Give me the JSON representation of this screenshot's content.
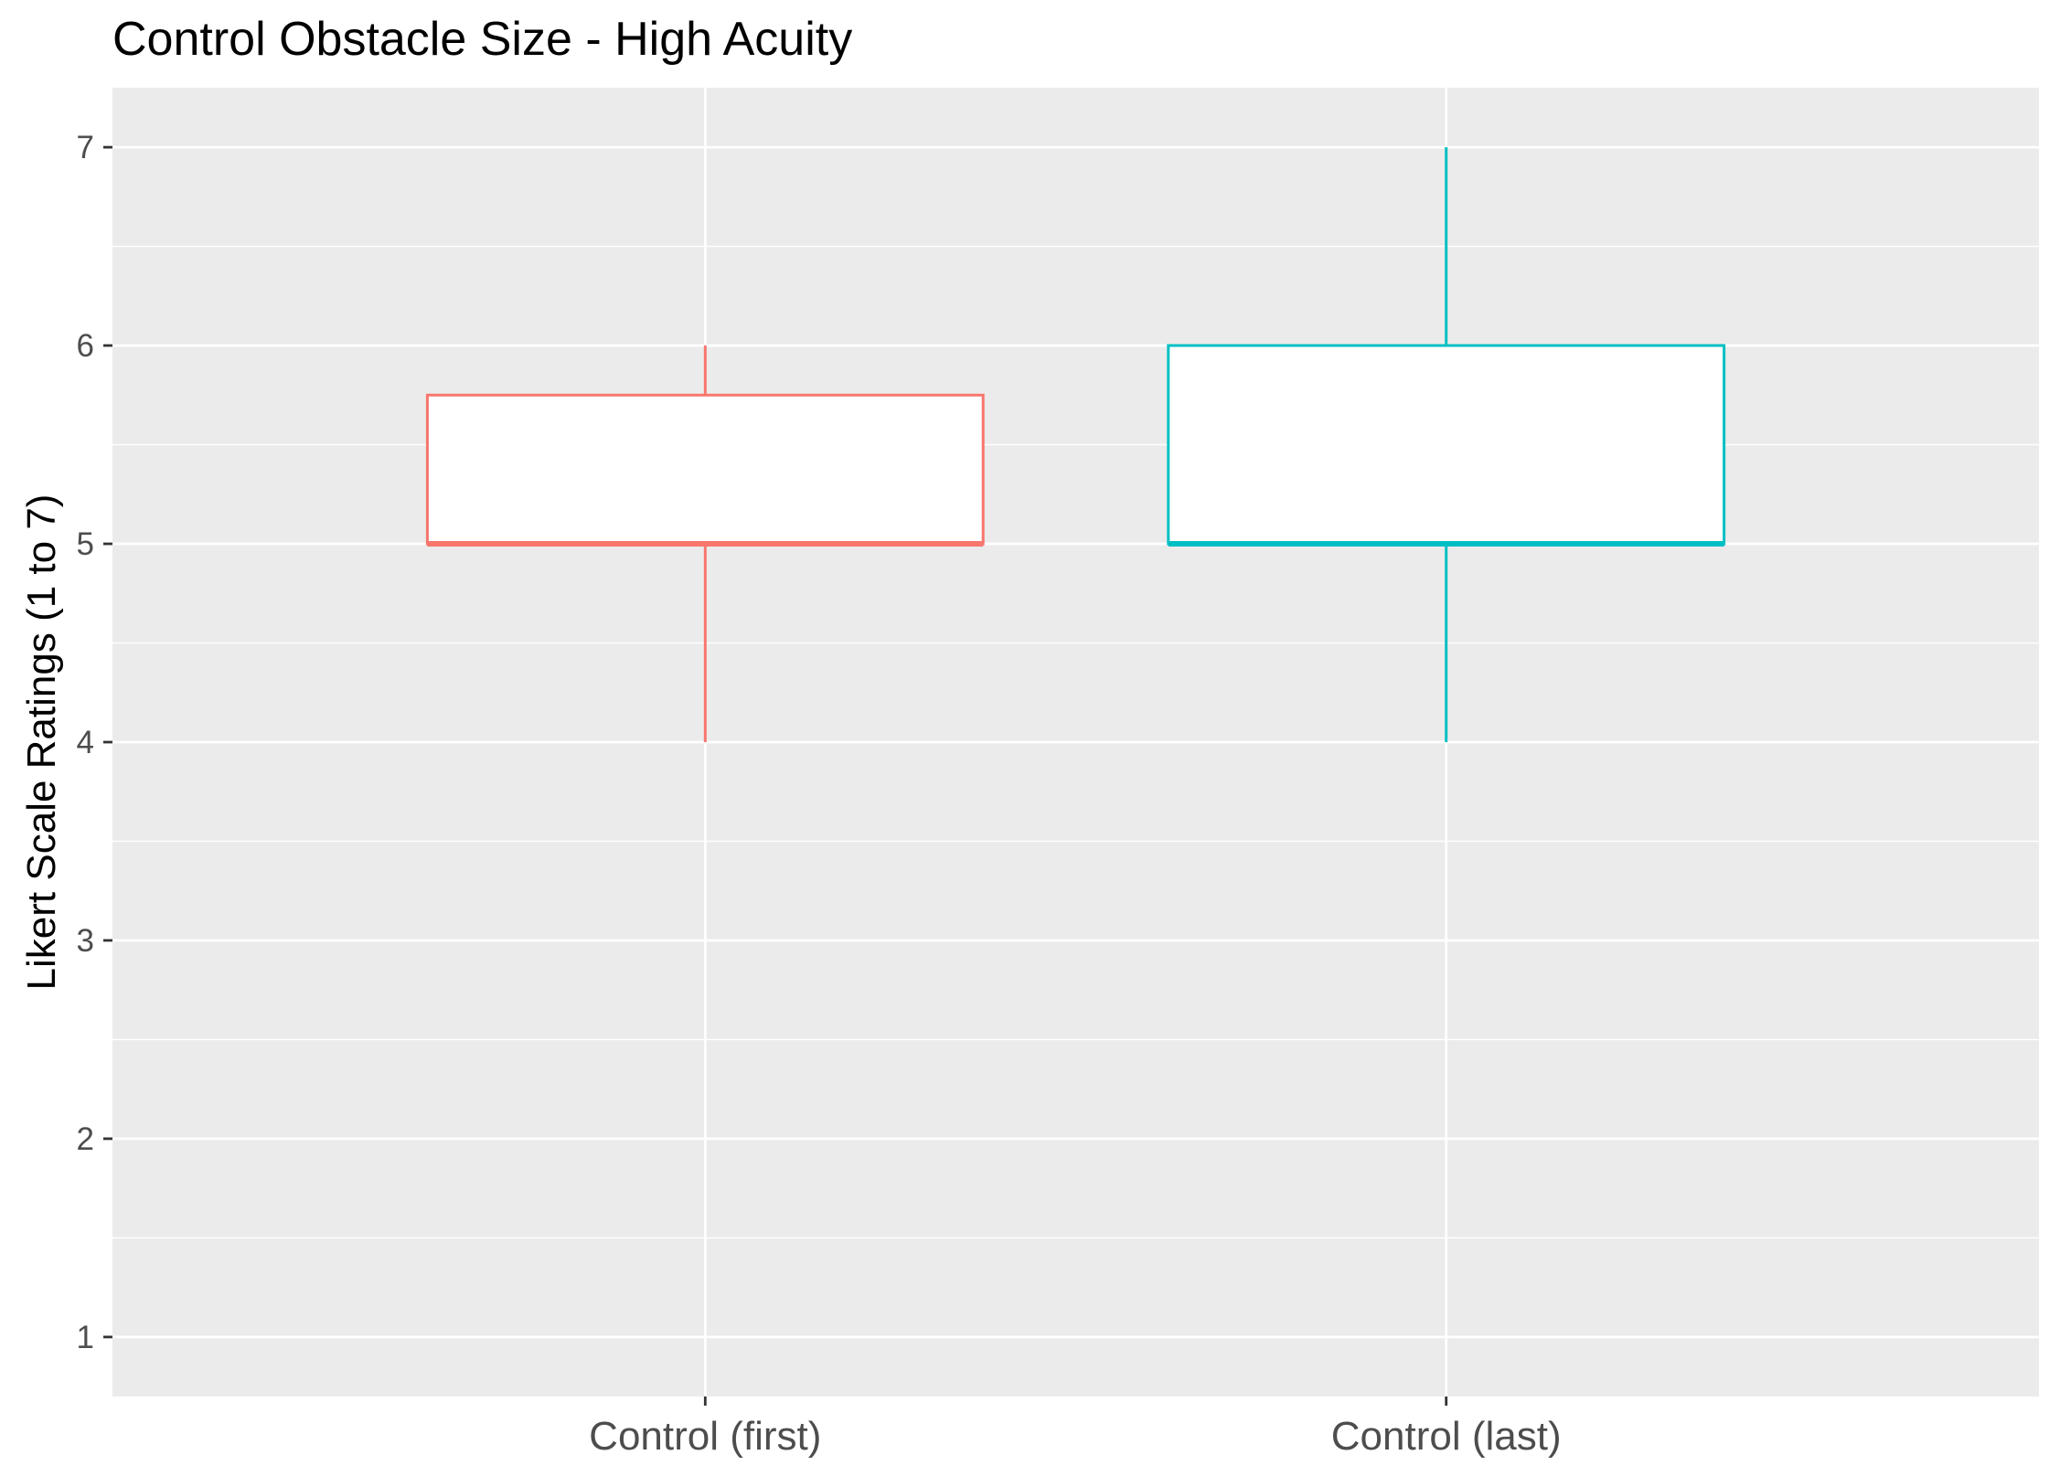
{
  "chart_data": {
    "type": "box",
    "title": "Control Obstacle Size  - High Acuity",
    "xlabel": "",
    "ylabel": "Likert Scale Ratings (1 to 7)",
    "ylim": [
      0.7,
      7.3
    ],
    "yticks": [
      1,
      2,
      3,
      4,
      5,
      6,
      7
    ],
    "grid": true,
    "legend": "none",
    "categories": [
      "Control (first)",
      "Control (last)"
    ],
    "boxes": [
      {
        "category": "Control (first)",
        "min": 4,
        "q1": 5,
        "median": 5,
        "q3": 5.75,
        "max": 6,
        "color": "#F8766D"
      },
      {
        "category": "Control (last)",
        "min": 4,
        "q1": 5,
        "median": 5,
        "q3": 6,
        "max": 7,
        "color": "#00BFC4"
      }
    ],
    "colors": {
      "panel_background": "#EBEBEB",
      "grid": "#FFFFFF",
      "tick_text": "#4D4D4D",
      "axis_ticks": "#333333",
      "box_fill": "#FFFFFF",
      "text": "#000000"
    }
  }
}
